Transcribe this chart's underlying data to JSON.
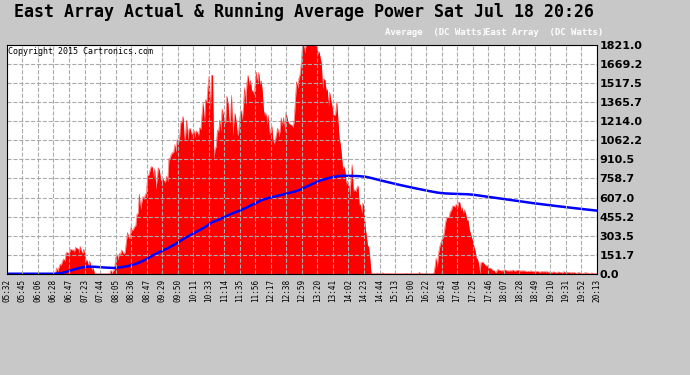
{
  "title": "East Array Actual & Running Average Power Sat Jul 18 20:26",
  "copyright": "Copyright 2015 Cartronics.com",
  "legend_labels": [
    "Average  (DC Watts)",
    "East Array  (DC Watts)"
  ],
  "y_ticks": [
    0.0,
    151.7,
    303.5,
    455.2,
    607.0,
    758.7,
    910.5,
    1062.2,
    1214.0,
    1365.7,
    1517.5,
    1669.2,
    1821.0
  ],
  "y_max": 1821.0,
  "time_labels": [
    "05:32",
    "05:45",
    "06:06",
    "06:28",
    "06:47",
    "07:23",
    "07:44",
    "08:05",
    "08:36",
    "08:47",
    "09:29",
    "09:50",
    "10:11",
    "10:33",
    "11:14",
    "11:35",
    "11:56",
    "12:17",
    "12:38",
    "12:59",
    "13:20",
    "13:41",
    "14:02",
    "14:23",
    "14:44",
    "15:13",
    "15:00",
    "16:22",
    "16:43",
    "17:04",
    "17:25",
    "17:46",
    "18:07",
    "18:28",
    "18:49",
    "19:10",
    "19:31",
    "19:52",
    "20:13"
  ],
  "outer_bg": "#c8c8c8",
  "plot_bg": "#ffffff",
  "grid_color": "#aaaaaa",
  "title_fontsize": 12,
  "tick_fontsize": 8
}
